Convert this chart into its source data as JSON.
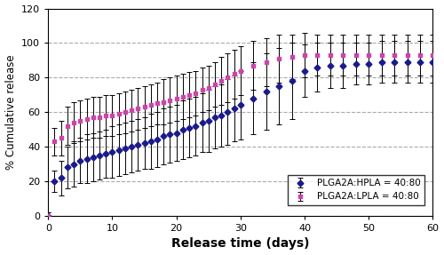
{
  "title": "",
  "xlabel": "Release time (days)",
  "ylabel": "% Cumulative release",
  "xlim": [
    0,
    60
  ],
  "ylim": [
    0,
    120
  ],
  "yticks": [
    0,
    20,
    40,
    60,
    80,
    100,
    120
  ],
  "xticks": [
    0,
    10,
    20,
    30,
    40,
    50,
    60
  ],
  "series1_label": "PLGA2A:HPLA = 40:80",
  "series1_color": "#1a1a8c",
  "series1_marker": "D",
  "series2_label": "PLGA2A:LPLA = 40:80",
  "series2_color": "#cc44aa",
  "series2_marker": "s",
  "series1_x": [
    0,
    1,
    2,
    3,
    4,
    5,
    6,
    7,
    8,
    9,
    10,
    11,
    12,
    13,
    14,
    15,
    16,
    17,
    18,
    19,
    20,
    21,
    22,
    23,
    24,
    25,
    26,
    27,
    28,
    29,
    30,
    32,
    34,
    36,
    38,
    40,
    42,
    44,
    46,
    48,
    50,
    52,
    54,
    56,
    58,
    60
  ],
  "series1_y": [
    0,
    20,
    22,
    28,
    30,
    32,
    33,
    34,
    35,
    36,
    37,
    38,
    39,
    40,
    41,
    42,
    43,
    44,
    46,
    47,
    48,
    50,
    51,
    52,
    54,
    55,
    57,
    58,
    60,
    62,
    64,
    68,
    72,
    75,
    78,
    84,
    86,
    87,
    87,
    88,
    88,
    89,
    89,
    89,
    89,
    89
  ],
  "series1_err": [
    2,
    6,
    10,
    12,
    13,
    13,
    14,
    14,
    14,
    14,
    15,
    15,
    15,
    15,
    15,
    15,
    16,
    16,
    16,
    16,
    16,
    17,
    17,
    17,
    17,
    18,
    18,
    18,
    19,
    19,
    20,
    21,
    22,
    22,
    22,
    15,
    14,
    13,
    13,
    12,
    12,
    12,
    12,
    12,
    12,
    12
  ],
  "series2_x": [
    0,
    1,
    2,
    3,
    4,
    5,
    6,
    7,
    8,
    9,
    10,
    11,
    12,
    13,
    14,
    15,
    16,
    17,
    18,
    19,
    20,
    21,
    22,
    23,
    24,
    25,
    26,
    27,
    28,
    29,
    30,
    32,
    34,
    36,
    38,
    40,
    42,
    44,
    46,
    48,
    50,
    52,
    54,
    56,
    58,
    60
  ],
  "series2_y": [
    0,
    43,
    45,
    52,
    54,
    55,
    56,
    57,
    57,
    58,
    58,
    59,
    60,
    61,
    62,
    63,
    64,
    65,
    66,
    67,
    68,
    69,
    70,
    71,
    73,
    74,
    76,
    78,
    80,
    82,
    84,
    87,
    89,
    91,
    92,
    93,
    93,
    93,
    93,
    93,
    93,
    93,
    93,
    93,
    93,
    93
  ],
  "series2_err": [
    2,
    8,
    10,
    11,
    12,
    12,
    12,
    12,
    12,
    12,
    12,
    12,
    12,
    12,
    12,
    12,
    12,
    12,
    13,
    13,
    13,
    13,
    13,
    13,
    13,
    13,
    13,
    14,
    14,
    14,
    14,
    14,
    14,
    14,
    13,
    13,
    12,
    12,
    12,
    12,
    12,
    12,
    12,
    12,
    12,
    12
  ],
  "grid_color": "#aaaaaa",
  "background_color": "#ffffff",
  "errorbar_capsize": 2,
  "errorbar_linewidth": 0.7,
  "line_linewidth": 1.0,
  "markersize": 3.5
}
